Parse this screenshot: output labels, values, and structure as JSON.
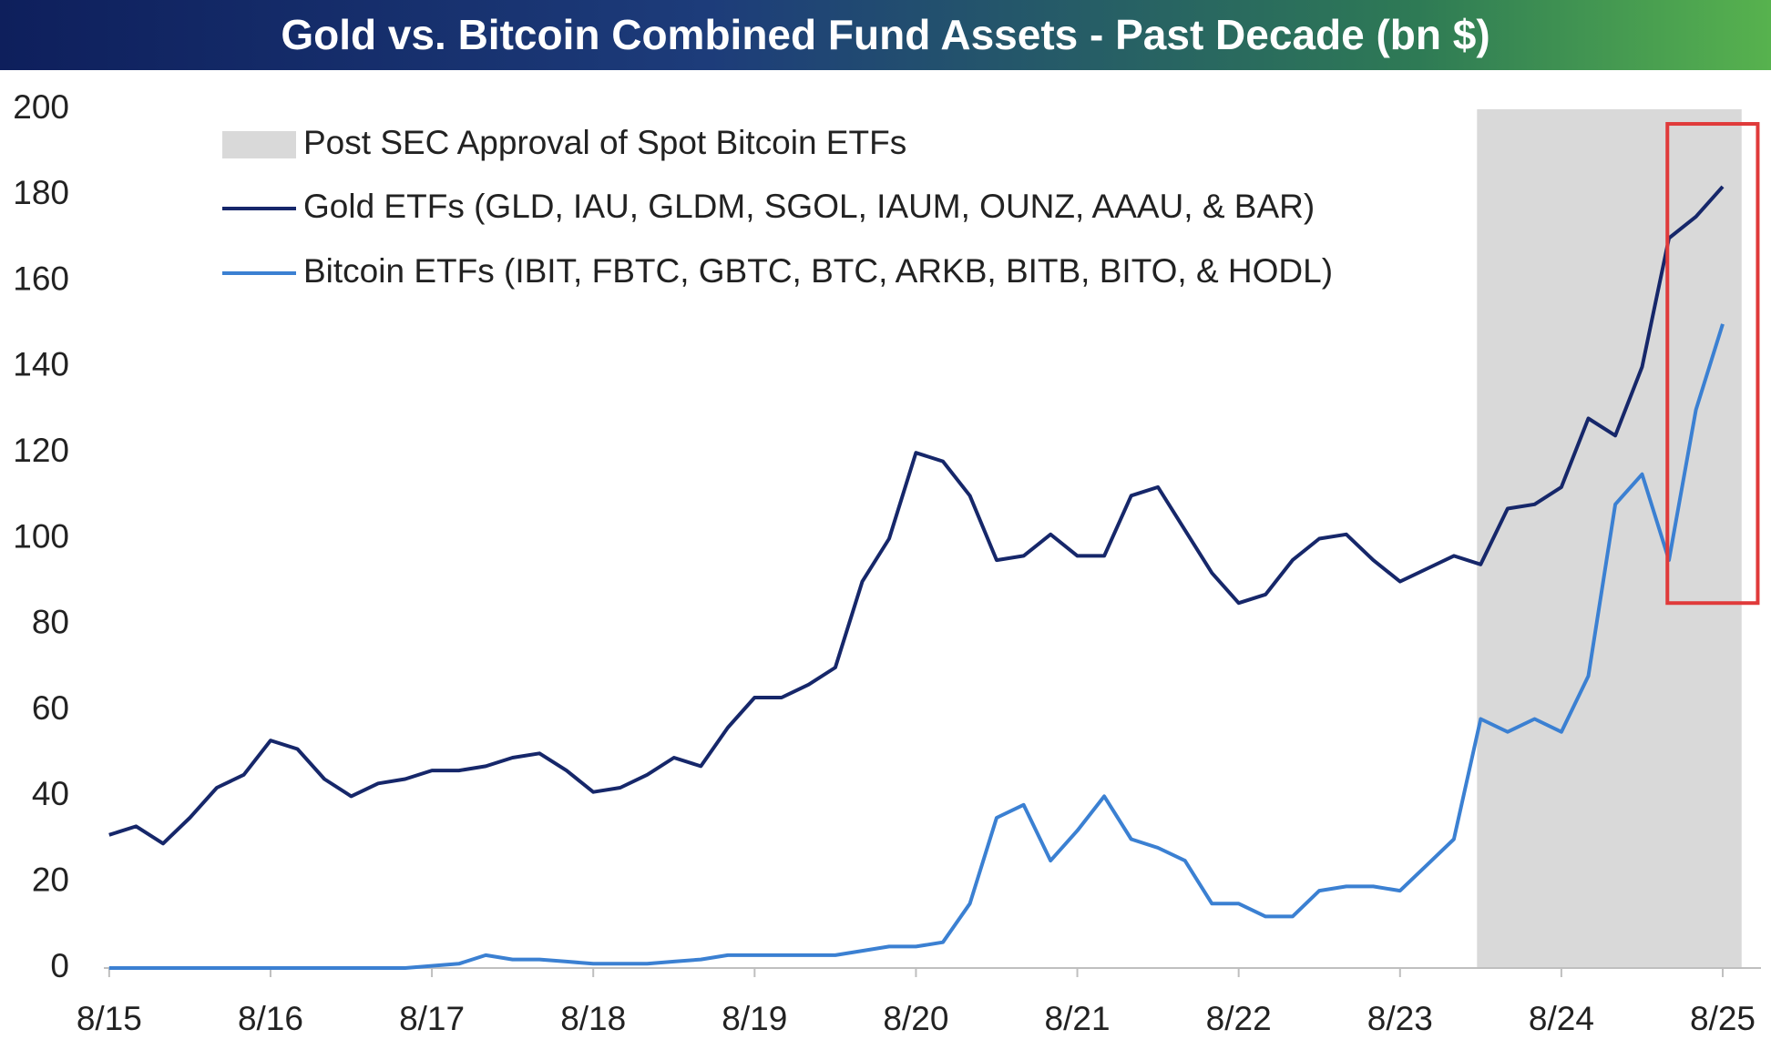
{
  "chart_data": {
    "type": "line",
    "title": "Gold vs. Bitcoin Combined Fund Assets - Past Decade (bn $)",
    "x": [
      2015.583,
      2015.75,
      2015.917,
      2016.083,
      2016.25,
      2016.417,
      2016.583,
      2016.75,
      2016.917,
      2017.083,
      2017.25,
      2017.417,
      2017.583,
      2017.75,
      2017.917,
      2018.083,
      2018.25,
      2018.417,
      2018.583,
      2018.75,
      2018.917,
      2019.083,
      2019.25,
      2019.417,
      2019.583,
      2019.75,
      2019.917,
      2020.083,
      2020.25,
      2020.417,
      2020.583,
      2020.75,
      2020.917,
      2021.083,
      2021.25,
      2021.417,
      2021.583,
      2021.75,
      2021.917,
      2022.083,
      2022.25,
      2022.417,
      2022.583,
      2022.75,
      2022.917,
      2023.083,
      2023.25,
      2023.417,
      2023.583,
      2023.75,
      2023.917,
      2024.083,
      2024.25,
      2024.417,
      2024.583,
      2024.75,
      2024.917,
      2025.083,
      2025.25,
      2025.417,
      2025.583
    ],
    "series": [
      {
        "name": "Gold ETFs (GLD, IAU, GLDM, SGOL, IAUM, OUNZ, AAAU, & BAR)",
        "color": "#16276a",
        "values": [
          31,
          33,
          29,
          35,
          42,
          45,
          53,
          51,
          44,
          40,
          43,
          44,
          46,
          46,
          47,
          49,
          50,
          46,
          41,
          42,
          45,
          49,
          47,
          56,
          63,
          63,
          66,
          70,
          90,
          100,
          120,
          118,
          110,
          95,
          96,
          101,
          96,
          96,
          110,
          112,
          102,
          92,
          85,
          87,
          95,
          100,
          101,
          95,
          90,
          93,
          96,
          94,
          107,
          108,
          112,
          128,
          124,
          140,
          170,
          175,
          182
        ]
      },
      {
        "name": "Bitcoin ETFs (IBIT, FBTC, GBTC, BTC, ARKB, BITB, BITO, & HODL)",
        "color": "#3b80d2",
        "values": [
          0,
          0,
          0,
          0,
          0,
          0,
          0,
          0,
          0,
          0,
          0,
          0,
          0.5,
          1,
          3,
          2,
          2,
          1.5,
          1,
          1,
          1,
          1.5,
          2,
          3,
          3,
          3,
          3,
          3,
          4,
          5,
          5,
          6,
          15,
          35,
          38,
          25,
          32,
          40,
          30,
          28,
          25,
          15,
          15,
          12,
          12,
          18,
          19,
          19,
          18,
          24,
          30,
          58,
          55,
          58,
          55,
          68,
          108,
          115,
          95,
          130,
          150
        ]
      }
    ],
    "shaded_region": {
      "label": "Post SEC Approval of Spot Bitcoin ETFs",
      "from": 2024.06,
      "to": 2025.7,
      "color": "#d9d9d9"
    },
    "highlight_box": {
      "x": [
        2025.24,
        2025.8
      ],
      "y": [
        85,
        196.6
      ],
      "color": "#e03a3a"
    },
    "xlim": [
      2015.55,
      2025.82
    ],
    "xticks": [
      {
        "value": 2015.583,
        "label": "8/15"
      },
      {
        "value": 2016.583,
        "label": "8/16"
      },
      {
        "value": 2017.583,
        "label": "8/17"
      },
      {
        "value": 2018.583,
        "label": "8/18"
      },
      {
        "value": 2019.583,
        "label": "8/19"
      },
      {
        "value": 2020.583,
        "label": "8/20"
      },
      {
        "value": 2021.583,
        "label": "8/21"
      },
      {
        "value": 2022.583,
        "label": "8/22"
      },
      {
        "value": 2023.583,
        "label": "8/23"
      },
      {
        "value": 2024.583,
        "label": "8/24"
      },
      {
        "value": 2025.583,
        "label": "8/25"
      }
    ],
    "ylim": [
      0,
      200
    ],
    "yticks": [
      0,
      20,
      40,
      60,
      80,
      100,
      120,
      140,
      160,
      180,
      200
    ],
    "grid": false
  }
}
